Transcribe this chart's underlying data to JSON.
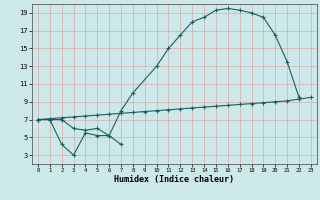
{
  "bg_color": "#cce8e8",
  "grid_color_v": "#ddaaaa",
  "grid_color_h": "#ddaaaa",
  "line_color": "#1a6060",
  "xlabel": "Humidex (Indice chaleur)",
  "xlim": [
    -0.5,
    23.5
  ],
  "ylim": [
    2,
    20
  ],
  "yticks": [
    3,
    5,
    7,
    9,
    11,
    13,
    15,
    17,
    19
  ],
  "xticks": [
    0,
    1,
    2,
    3,
    4,
    5,
    6,
    7,
    8,
    9,
    10,
    11,
    12,
    13,
    14,
    15,
    16,
    17,
    18,
    19,
    20,
    21,
    22,
    23
  ],
  "curve1_x": [
    0,
    1,
    2,
    3,
    4,
    5,
    6,
    7,
    8,
    10,
    11,
    12,
    13,
    14,
    15,
    16,
    17,
    18,
    19,
    20,
    21,
    22
  ],
  "curve1_y": [
    7.0,
    7.0,
    7.0,
    6.0,
    5.8,
    6.0,
    5.2,
    8.0,
    10.0,
    13.0,
    15.0,
    16.5,
    18.0,
    18.5,
    19.3,
    19.5,
    19.3,
    19.0,
    18.5,
    16.5,
    13.5,
    9.5
  ],
  "curve2_x": [
    0,
    1,
    2,
    3,
    4,
    5,
    6,
    7,
    8,
    9,
    10,
    11,
    12,
    13,
    14,
    15,
    16,
    17,
    18,
    19,
    20,
    21,
    22,
    23
  ],
  "curve2_y": [
    7.0,
    7.1,
    7.2,
    7.3,
    7.4,
    7.5,
    7.6,
    7.7,
    7.8,
    7.9,
    8.0,
    8.1,
    8.2,
    8.3,
    8.4,
    8.5,
    8.6,
    8.7,
    8.8,
    8.9,
    9.0,
    9.1,
    9.3,
    9.5
  ],
  "curve3_x": [
    0,
    1,
    2,
    3,
    4,
    5,
    6,
    7
  ],
  "curve3_y": [
    7.0,
    7.0,
    4.2,
    3.0,
    5.5,
    5.2,
    5.2,
    4.2
  ]
}
